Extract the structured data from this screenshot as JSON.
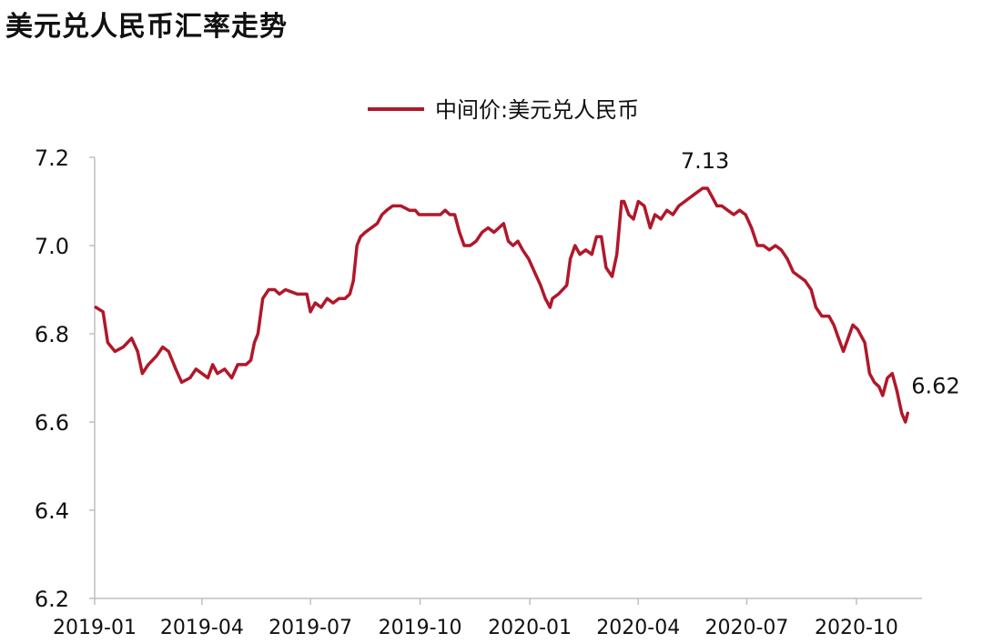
{
  "title": "美元兑人民币汇率走势",
  "chart_data": {
    "type": "line",
    "title": "美元兑人民币汇率走势",
    "xlabel": "",
    "ylabel": "",
    "ylim": [
      6.2,
      7.2
    ],
    "yticks": [
      "6.2",
      "6.4",
      "6.6",
      "6.8",
      "7.0",
      "7.2"
    ],
    "xticks": [
      "2019-01",
      "2019-04",
      "2019-07",
      "2019-10",
      "2020-01",
      "2020-04",
      "2020-07",
      "2020-10"
    ],
    "legend_position": "top-center",
    "grid": false,
    "series": [
      {
        "name": "中间价:美元兑人民币",
        "color": "#b0182a",
        "points": [
          [
            "2019-01-02",
            6.86
          ],
          [
            "2019-01-08",
            6.85
          ],
          [
            "2019-01-12",
            6.78
          ],
          [
            "2019-01-18",
            6.76
          ],
          [
            "2019-01-25",
            6.77
          ],
          [
            "2019-02-01",
            6.79
          ],
          [
            "2019-02-06",
            6.76
          ],
          [
            "2019-02-10",
            6.71
          ],
          [
            "2019-02-15",
            6.73
          ],
          [
            "2019-02-22",
            6.75
          ],
          [
            "2019-02-27",
            6.77
          ],
          [
            "2019-03-04",
            6.76
          ],
          [
            "2019-03-10",
            6.72
          ],
          [
            "2019-03-15",
            6.69
          ],
          [
            "2019-03-22",
            6.7
          ],
          [
            "2019-03-27",
            6.72
          ],
          [
            "2019-04-01",
            6.71
          ],
          [
            "2019-04-06",
            6.7
          ],
          [
            "2019-04-10",
            6.73
          ],
          [
            "2019-04-14",
            6.71
          ],
          [
            "2019-04-20",
            6.72
          ],
          [
            "2019-04-26",
            6.7
          ],
          [
            "2019-05-01",
            6.73
          ],
          [
            "2019-05-08",
            6.73
          ],
          [
            "2019-05-12",
            6.74
          ],
          [
            "2019-05-15",
            6.78
          ],
          [
            "2019-05-18",
            6.8
          ],
          [
            "2019-05-22",
            6.88
          ],
          [
            "2019-05-27",
            6.9
          ],
          [
            "2019-06-01",
            6.9
          ],
          [
            "2019-06-05",
            6.89
          ],
          [
            "2019-06-10",
            6.9
          ],
          [
            "2019-06-20",
            6.89
          ],
          [
            "2019-06-28",
            6.89
          ],
          [
            "2019-07-01",
            6.85
          ],
          [
            "2019-07-05",
            6.87
          ],
          [
            "2019-07-10",
            6.86
          ],
          [
            "2019-07-15",
            6.88
          ],
          [
            "2019-07-20",
            6.87
          ],
          [
            "2019-07-25",
            6.88
          ],
          [
            "2019-07-30",
            6.88
          ],
          [
            "2019-08-03",
            6.89
          ],
          [
            "2019-08-06",
            6.92
          ],
          [
            "2019-08-09",
            7.0
          ],
          [
            "2019-08-12",
            7.02
          ],
          [
            "2019-08-16",
            7.03
          ],
          [
            "2019-08-21",
            7.04
          ],
          [
            "2019-08-26",
            7.05
          ],
          [
            "2019-08-30",
            7.07
          ],
          [
            "2019-09-03",
            7.08
          ],
          [
            "2019-09-08",
            7.09
          ],
          [
            "2019-09-15",
            7.09
          ],
          [
            "2019-09-22",
            7.08
          ],
          [
            "2019-09-27",
            7.08
          ],
          [
            "2019-09-30",
            7.07
          ],
          [
            "2019-10-08",
            7.07
          ],
          [
            "2019-10-18",
            7.07
          ],
          [
            "2019-10-22",
            7.08
          ],
          [
            "2019-10-26",
            7.07
          ],
          [
            "2019-10-30",
            7.07
          ],
          [
            "2019-11-03",
            7.03
          ],
          [
            "2019-11-07",
            7.0
          ],
          [
            "2019-11-12",
            7.0
          ],
          [
            "2019-11-17",
            7.01
          ],
          [
            "2019-11-22",
            7.03
          ],
          [
            "2019-11-27",
            7.04
          ],
          [
            "2019-12-02",
            7.03
          ],
          [
            "2019-12-06",
            7.04
          ],
          [
            "2019-12-10",
            7.05
          ],
          [
            "2019-12-14",
            7.01
          ],
          [
            "2019-12-18",
            7.0
          ],
          [
            "2019-12-22",
            7.01
          ],
          [
            "2019-12-26",
            6.99
          ],
          [
            "2019-12-31",
            6.97
          ],
          [
            "2020-01-05",
            6.94
          ],
          [
            "2020-01-10",
            6.91
          ],
          [
            "2020-01-14",
            6.88
          ],
          [
            "2020-01-18",
            6.86
          ],
          [
            "2020-01-20",
            6.88
          ],
          [
            "2020-01-25",
            6.89
          ],
          [
            "2020-02-01",
            6.91
          ],
          [
            "2020-02-04",
            6.97
          ],
          [
            "2020-02-08",
            7.0
          ],
          [
            "2020-02-12",
            6.98
          ],
          [
            "2020-02-17",
            6.99
          ],
          [
            "2020-02-22",
            6.98
          ],
          [
            "2020-02-26",
            7.02
          ],
          [
            "2020-03-01",
            7.02
          ],
          [
            "2020-03-05",
            6.95
          ],
          [
            "2020-03-10",
            6.93
          ],
          [
            "2020-03-14",
            6.98
          ],
          [
            "2020-03-18",
            7.1
          ],
          [
            "2020-03-20",
            7.1
          ],
          [
            "2020-03-24",
            7.07
          ],
          [
            "2020-03-28",
            7.06
          ],
          [
            "2020-04-01",
            7.1
          ],
          [
            "2020-04-06",
            7.09
          ],
          [
            "2020-04-11",
            7.04
          ],
          [
            "2020-04-15",
            7.07
          ],
          [
            "2020-04-20",
            7.06
          ],
          [
            "2020-04-25",
            7.08
          ],
          [
            "2020-04-30",
            7.07
          ],
          [
            "2020-05-05",
            7.09
          ],
          [
            "2020-05-10",
            7.1
          ],
          [
            "2020-05-15",
            7.11
          ],
          [
            "2020-05-20",
            7.12
          ],
          [
            "2020-05-25",
            7.13
          ],
          [
            "2020-05-29",
            7.13
          ],
          [
            "2020-06-02",
            7.11
          ],
          [
            "2020-06-06",
            7.09
          ],
          [
            "2020-06-10",
            7.09
          ],
          [
            "2020-06-15",
            7.08
          ],
          [
            "2020-06-20",
            7.07
          ],
          [
            "2020-06-25",
            7.08
          ],
          [
            "2020-06-30",
            7.07
          ],
          [
            "2020-07-05",
            7.04
          ],
          [
            "2020-07-10",
            7.0
          ],
          [
            "2020-07-15",
            7.0
          ],
          [
            "2020-07-20",
            6.99
          ],
          [
            "2020-07-25",
            7.0
          ],
          [
            "2020-07-30",
            6.99
          ],
          [
            "2020-08-04",
            6.97
          ],
          [
            "2020-08-09",
            6.94
          ],
          [
            "2020-08-14",
            6.93
          ],
          [
            "2020-08-19",
            6.92
          ],
          [
            "2020-08-24",
            6.9
          ],
          [
            "2020-08-28",
            6.86
          ],
          [
            "2020-09-02",
            6.84
          ],
          [
            "2020-09-08",
            6.84
          ],
          [
            "2020-09-12",
            6.82
          ],
          [
            "2020-09-16",
            6.79
          ],
          [
            "2020-09-20",
            6.76
          ],
          [
            "2020-09-24",
            6.79
          ],
          [
            "2020-09-28",
            6.82
          ],
          [
            "2020-10-02",
            6.81
          ],
          [
            "2020-10-08",
            6.78
          ],
          [
            "2020-10-12",
            6.71
          ],
          [
            "2020-10-16",
            6.69
          ],
          [
            "2020-10-20",
            6.68
          ],
          [
            "2020-10-23",
            6.66
          ],
          [
            "2020-10-27",
            6.7
          ],
          [
            "2020-10-31",
            6.71
          ],
          [
            "2020-11-04",
            6.67
          ],
          [
            "2020-11-08",
            6.62
          ],
          [
            "2020-11-11",
            6.6
          ],
          [
            "2020-11-13",
            6.62
          ]
        ]
      }
    ],
    "annotations": [
      {
        "text": "7.13",
        "x": "2020-05-27",
        "y": 7.13
      },
      {
        "text": "6.62",
        "x": "2020-11-13",
        "y": 6.62
      }
    ]
  }
}
